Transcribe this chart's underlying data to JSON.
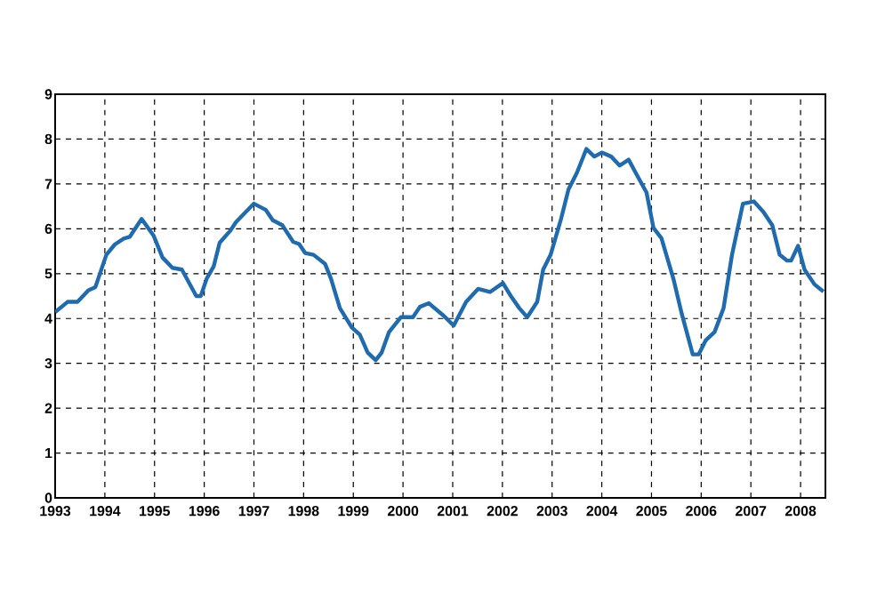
{
  "chart_data": {
    "type": "line",
    "x": [
      1993.0,
      1993.25,
      1993.45,
      1993.67,
      1993.81,
      1994.03,
      1994.2,
      1994.38,
      1994.5,
      1994.74,
      1994.98,
      1995.16,
      1995.36,
      1995.55,
      1995.84,
      1995.93,
      1996.05,
      1996.19,
      1996.31,
      1996.52,
      1996.64,
      1997.0,
      1997.24,
      1997.38,
      1997.57,
      1997.79,
      1997.91,
      1998.03,
      1998.2,
      1998.43,
      1998.55,
      1998.73,
      1998.97,
      1999.13,
      1999.29,
      1999.45,
      1999.57,
      1999.72,
      1999.96,
      2000.2,
      2000.34,
      2000.52,
      2000.82,
      2001.02,
      2001.27,
      2001.51,
      2001.75,
      2002.01,
      2002.17,
      2002.34,
      2002.5,
      2002.7,
      2002.82,
      2002.97,
      2003.18,
      2003.33,
      2003.5,
      2003.69,
      2003.85,
      2004.0,
      2004.19,
      2004.36,
      2004.54,
      2004.72,
      2004.9,
      2005.04,
      2005.2,
      2005.44,
      2005.61,
      2005.83,
      2005.95,
      2006.09,
      2006.27,
      2006.45,
      2006.62,
      2006.84,
      2007.06,
      2007.25,
      2007.43,
      2007.58,
      2007.73,
      2007.81,
      2007.95,
      2008.08,
      2008.28,
      2008.46
    ],
    "values": [
      4.14,
      4.37,
      4.37,
      4.63,
      4.7,
      5.42,
      5.65,
      5.78,
      5.82,
      6.22,
      5.85,
      5.36,
      5.13,
      5.09,
      4.5,
      4.5,
      4.89,
      5.16,
      5.69,
      5.95,
      6.15,
      6.56,
      6.42,
      6.19,
      6.08,
      5.71,
      5.66,
      5.46,
      5.42,
      5.22,
      4.89,
      4.23,
      3.8,
      3.64,
      3.24,
      3.07,
      3.24,
      3.7,
      4.03,
      4.03,
      4.26,
      4.34,
      4.06,
      3.84,
      4.37,
      4.66,
      4.59,
      4.79,
      4.5,
      4.23,
      4.03,
      4.37,
      5.09,
      5.42,
      6.22,
      6.88,
      7.25,
      7.78,
      7.61,
      7.7,
      7.61,
      7.41,
      7.54,
      7.17,
      6.81,
      6.02,
      5.79,
      4.89,
      4.1,
      3.2,
      3.2,
      3.51,
      3.7,
      4.23,
      5.42,
      6.56,
      6.61,
      6.38,
      6.08,
      5.42,
      5.29,
      5.29,
      5.62,
      5.09,
      4.76,
      4.6
    ],
    "color": "#1f6bb0",
    "xlim": [
      1993,
      2008.5
    ],
    "ylim": [
      0,
      9
    ],
    "xticks": [
      1993,
      1994,
      1995,
      1996,
      1997,
      1998,
      1999,
      2000,
      2001,
      2002,
      2003,
      2004,
      2005,
      2006,
      2007,
      2008
    ],
    "yticks": [
      0,
      1,
      2,
      3,
      4,
      5,
      6,
      7,
      8,
      9
    ],
    "grid": true,
    "line_style": "solid"
  }
}
